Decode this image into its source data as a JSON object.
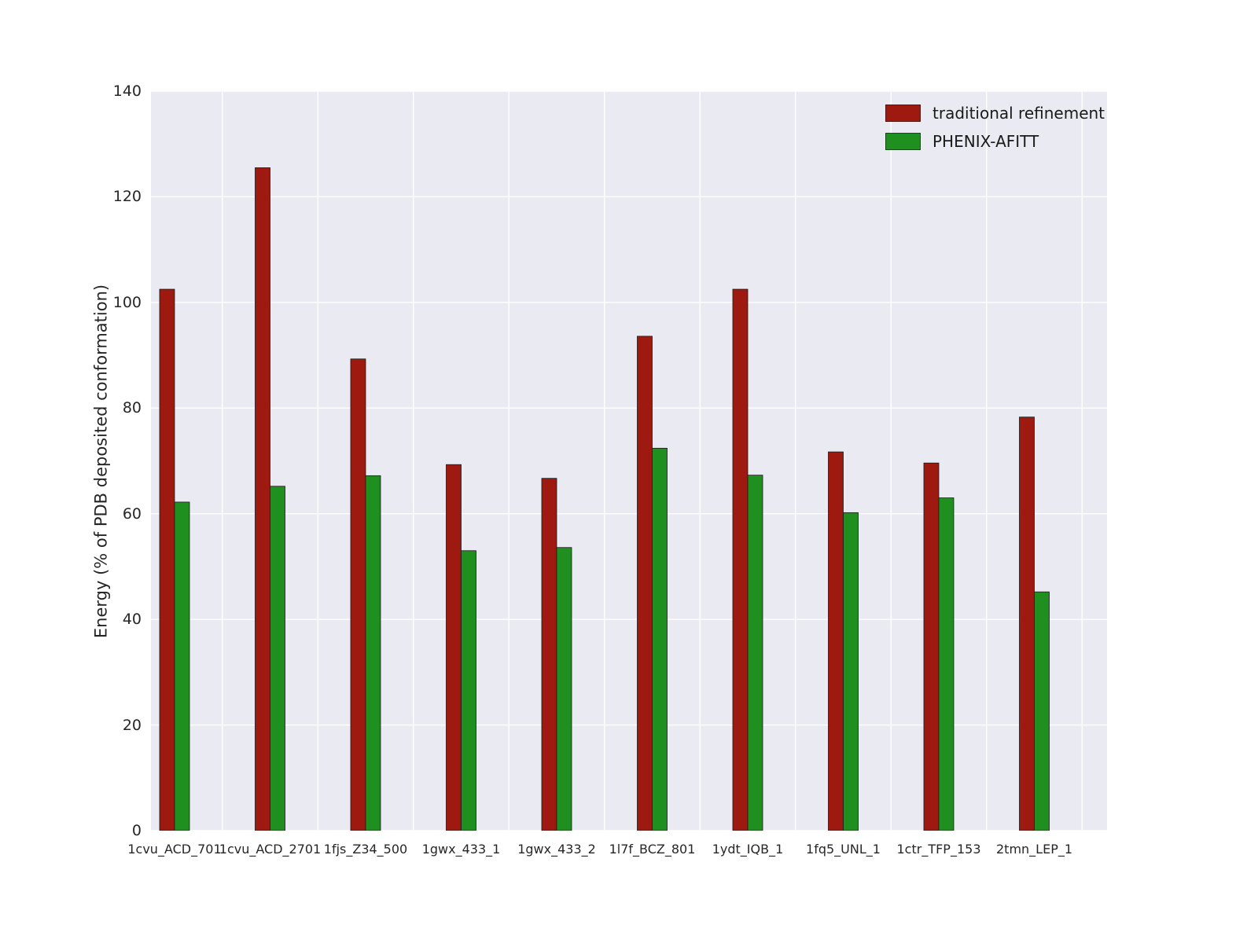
{
  "chart_data": {
    "type": "bar",
    "title": "",
    "xlabel": "",
    "ylabel": "Energy (% of PDB deposited conformation)",
    "ylim": [
      0,
      140
    ],
    "yticks": [
      0,
      20,
      40,
      60,
      80,
      100,
      120,
      140
    ],
    "grid": true,
    "legend_position": "upper right",
    "categories": [
      "1cvu_ACD_701",
      "1cvu_ACD_2701",
      "1fjs_Z34_500",
      "1gwx_433_1",
      "1gwx_433_2",
      "1l7f_BCZ_801",
      "1ydt_IQB_1",
      "1fq5_UNL_1",
      "1ctr_TFP_153",
      "2tmn_LEP_1"
    ],
    "series": [
      {
        "name": "traditional refinement",
        "color": "#9e1a10",
        "values": [
          102.5,
          125.5,
          89.3,
          69.3,
          66.7,
          93.6,
          102.5,
          71.7,
          69.6,
          78.3
        ]
      },
      {
        "name": "PHENIX-AFITT",
        "color": "#1f8f1f",
        "values": [
          62.2,
          65.2,
          67.2,
          53.0,
          53.6,
          72.4,
          67.3,
          60.2,
          63.0,
          45.2
        ]
      }
    ]
  },
  "colors": {
    "figure_background": "#ffffff",
    "plot_background": "#eaeaf2",
    "grid": "#ffffff",
    "bar_edge": "#1a1a1a",
    "tick_text": "#262626"
  }
}
